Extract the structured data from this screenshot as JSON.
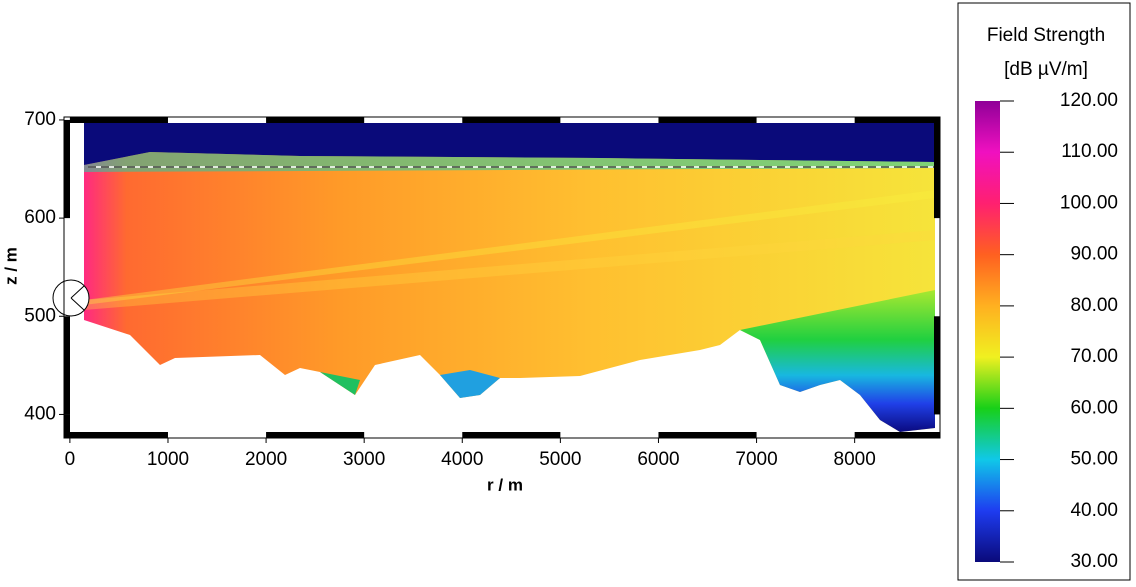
{
  "chart_data": {
    "type": "heatmap",
    "xlabel": "r / m",
    "ylabel": "z / m",
    "xlim": [
      -60,
      8870
    ],
    "ylim": [
      376,
      703
    ],
    "xticks": [
      0,
      1000,
      2000,
      3000,
      4000,
      5000,
      6000,
      7000,
      8000
    ],
    "yticks": [
      400,
      500,
      600,
      700
    ],
    "colorbar": {
      "title": "Field Strength",
      "unit": "[dB µV/m]",
      "lim": [
        30,
        120
      ],
      "ticks": [
        {
          "value": 120,
          "label": "120.00"
        },
        {
          "value": 110,
          "label": "110.00"
        },
        {
          "value": 100,
          "label": "100.00"
        },
        {
          "value": 90,
          "label": "90.00"
        },
        {
          "value": 80,
          "label": "80.00"
        },
        {
          "value": 70,
          "label": "70.00"
        },
        {
          "value": 60,
          "label": "60.00"
        },
        {
          "value": 50,
          "label": "50.00"
        },
        {
          "value": 40,
          "label": "40.00"
        },
        {
          "value": 30,
          "label": "30.00"
        }
      ],
      "colors": [
        "#0a0a7a",
        "#1e3cf0",
        "#10c8e8",
        "#18d018",
        "#f0f020",
        "#ffb020",
        "#ff6020",
        "#ff2070",
        "#f010c0",
        "#900098"
      ]
    }
  }
}
